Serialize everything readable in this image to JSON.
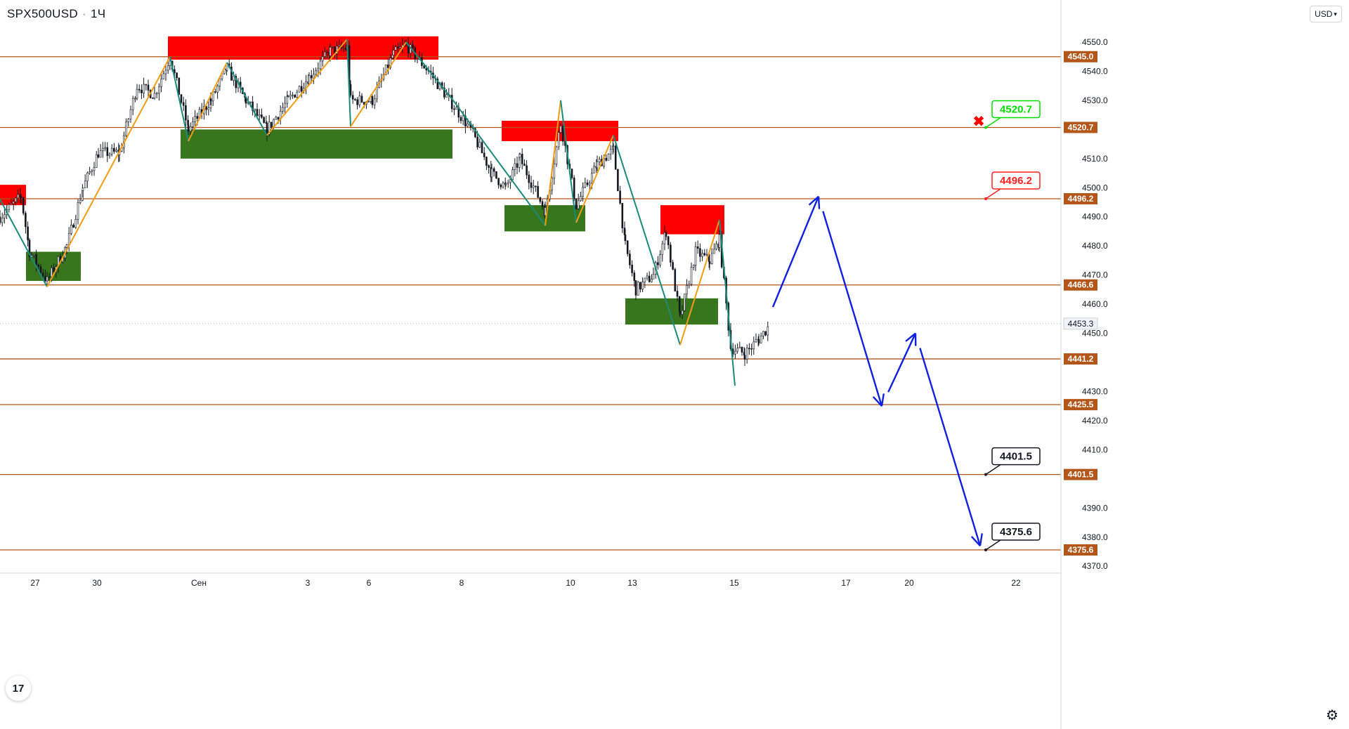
{
  "header": {
    "symbol": "SPX500USD",
    "interval": "1Ч"
  },
  "currency_button": "USD",
  "logo_text": "17",
  "icons": {
    "settings": "gear-icon",
    "currency_chevron": "chevron-down-icon",
    "target_cancel": "x-mark-icon"
  },
  "colors": {
    "hline": "#b4561a",
    "label_bg": "#b4561a",
    "supply": "#ff0000",
    "demand": "#38761d",
    "zigzag_up": "#f39c12",
    "zigzag_down": "#1a8a7a",
    "forecast": "#1020e0",
    "candle": "#131722",
    "callout_green": "#00e000",
    "callout_red": "#ff2020",
    "callout_black": "#131722"
  },
  "chart_data": {
    "type": "candlestick",
    "ylim": [
      4365,
      4560
    ],
    "price_ticks": [
      4550.0,
      4540.0,
      4530.0,
      4510.0,
      4500.0,
      4490.0,
      4480.0,
      4470.0,
      4460.0,
      4450.0,
      4430.0,
      4420.0,
      4410.0,
      4390.0,
      4380.0,
      4370.0
    ],
    "date_ticks": [
      "27",
      "30",
      "Сен",
      "3",
      "6",
      "8",
      "10",
      "13",
      "15",
      "17",
      "20",
      "22"
    ],
    "current_price": 4453.3,
    "levels": [
      4545.0,
      4520.7,
      4496.2,
      4466.6,
      4441.2,
      4425.5,
      4401.5,
      4375.6
    ],
    "callouts": [
      {
        "value": "4520.7",
        "color": "green"
      },
      {
        "value": "4496.2",
        "color": "red"
      },
      {
        "value": "4401.5",
        "color": "black"
      },
      {
        "value": "4375.6",
        "color": "black"
      }
    ],
    "supply_zones": [
      {
        "x0": 0,
        "x1": 37,
        "y_top": 4501,
        "y_bottom": 4494
      },
      {
        "x0": 239,
        "x1": 624,
        "y_top": 4552,
        "y_bottom": 4544
      },
      {
        "x0": 714,
        "x1": 880,
        "y_top": 4523,
        "y_bottom": 4516
      },
      {
        "x0": 940,
        "x1": 1031,
        "y_top": 4494,
        "y_bottom": 4484
      }
    ],
    "demand_zones": [
      {
        "x0": 37,
        "x1": 115,
        "y_top": 4478,
        "y_bottom": 4468
      },
      {
        "x0": 257,
        "x1": 644,
        "y_top": 4520,
        "y_bottom": 4510
      },
      {
        "x0": 718,
        "x1": 833,
        "y_top": 4494,
        "y_bottom": 4485
      },
      {
        "x0": 890,
        "x1": 1022,
        "y_top": 4462,
        "y_bottom": 4453
      }
    ],
    "zigzag": [
      {
        "x": 0,
        "y": 4496
      },
      {
        "x": 67,
        "y": 4466
      },
      {
        "x": 242,
        "y": 4545
      },
      {
        "x": 268,
        "y": 4516
      },
      {
        "x": 323,
        "y": 4543
      },
      {
        "x": 380,
        "y": 4518
      },
      {
        "x": 494,
        "y": 4551
      },
      {
        "x": 499,
        "y": 4521
      },
      {
        "x": 578,
        "y": 4550
      },
      {
        "x": 645,
        "y": 4530
      },
      {
        "x": 776,
        "y": 4487
      },
      {
        "x": 798,
        "y": 4530
      },
      {
        "x": 820,
        "y": 4488
      },
      {
        "x": 873,
        "y": 4518
      },
      {
        "x": 968,
        "y": 4446
      },
      {
        "x": 1024,
        "y": 4489
      },
      {
        "x": 1046,
        "y": 4432
      }
    ],
    "forecast_path": [
      {
        "x": 1100,
        "y": 4459
      },
      {
        "x": 1165,
        "y": 4497
      },
      {
        "x": 1255,
        "y": 4425
      },
      {
        "x": 1303,
        "y": 4450
      },
      {
        "x": 1395,
        "y": 4377
      }
    ],
    "candles_anchor": [
      {
        "x": 0,
        "y": 4490
      },
      {
        "x": 30,
        "y": 4497
      },
      {
        "x": 42,
        "y": 4478
      },
      {
        "x": 67,
        "y": 4468
      },
      {
        "x": 95,
        "y": 4480
      },
      {
        "x": 118,
        "y": 4500
      },
      {
        "x": 140,
        "y": 4512
      },
      {
        "x": 170,
        "y": 4512
      },
      {
        "x": 195,
        "y": 4535
      },
      {
        "x": 220,
        "y": 4532
      },
      {
        "x": 242,
        "y": 4545
      },
      {
        "x": 268,
        "y": 4520
      },
      {
        "x": 300,
        "y": 4530
      },
      {
        "x": 323,
        "y": 4541
      },
      {
        "x": 350,
        "y": 4530
      },
      {
        "x": 380,
        "y": 4520
      },
      {
        "x": 410,
        "y": 4530
      },
      {
        "x": 440,
        "y": 4538
      },
      {
        "x": 470,
        "y": 4547
      },
      {
        "x": 494,
        "y": 4548
      },
      {
        "x": 499,
        "y": 4530
      },
      {
        "x": 530,
        "y": 4530
      },
      {
        "x": 560,
        "y": 4546
      },
      {
        "x": 578,
        "y": 4549
      },
      {
        "x": 610,
        "y": 4540
      },
      {
        "x": 640,
        "y": 4530
      },
      {
        "x": 670,
        "y": 4520
      },
      {
        "x": 700,
        "y": 4505
      },
      {
        "x": 720,
        "y": 4500
      },
      {
        "x": 740,
        "y": 4510
      },
      {
        "x": 776,
        "y": 4492
      },
      {
        "x": 798,
        "y": 4522
      },
      {
        "x": 820,
        "y": 4494
      },
      {
        "x": 850,
        "y": 4508
      },
      {
        "x": 873,
        "y": 4513
      },
      {
        "x": 890,
        "y": 4480
      },
      {
        "x": 905,
        "y": 4465
      },
      {
        "x": 930,
        "y": 4470
      },
      {
        "x": 948,
        "y": 4485
      },
      {
        "x": 968,
        "y": 4455
      },
      {
        "x": 990,
        "y": 4478
      },
      {
        "x": 1010,
        "y": 4475
      },
      {
        "x": 1024,
        "y": 4482
      },
      {
        "x": 1040,
        "y": 4445
      },
      {
        "x": 1060,
        "y": 4443
      },
      {
        "x": 1080,
        "y": 4448
      },
      {
        "x": 1096,
        "y": 4453
      }
    ]
  }
}
